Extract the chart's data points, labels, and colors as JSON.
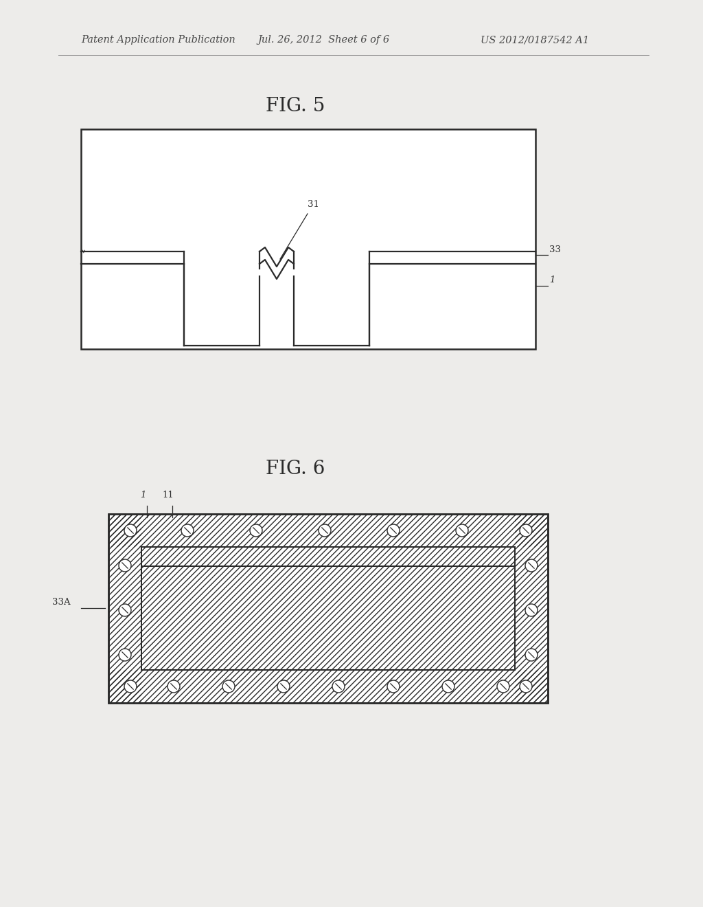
{
  "bg_color": "#edecea",
  "line_color": "#2a2a2a",
  "header_text": "Patent Application Publication",
  "header_date": "Jul. 26, 2012  Sheet 6 of 6",
  "header_patent": "US 2012/0187542 A1",
  "fig5_title": "FIG. 5",
  "fig6_title": "FIG. 6",
  "label_31": "31",
  "label_33": "33",
  "label_1": "1",
  "label_11": "11",
  "label_33A": "33A"
}
